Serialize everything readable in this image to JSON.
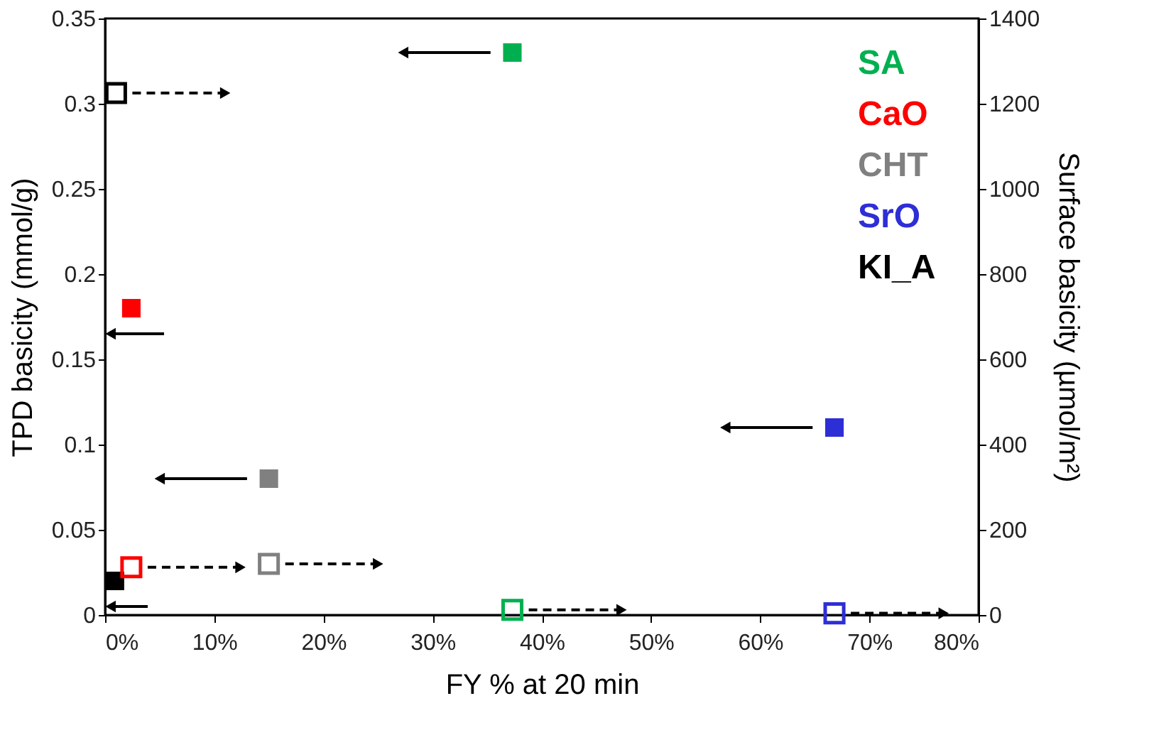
{
  "chart_data": {
    "type": "scatter",
    "xlabel": "FY % at 20 min",
    "ylabel": "TPD basicity (mmol/g)",
    "y2label": "Surface basicity (µmol/m²)",
    "xlim": [
      0,
      80
    ],
    "xticks": [
      {
        "value": 0,
        "label": "0%"
      },
      {
        "value": 10,
        "label": "10%"
      },
      {
        "value": 20,
        "label": "20%"
      },
      {
        "value": 30,
        "label": "30%"
      },
      {
        "value": 40,
        "label": "40%"
      },
      {
        "value": 50,
        "label": "50%"
      },
      {
        "value": 60,
        "label": "60%"
      },
      {
        "value": 70,
        "label": "70%"
      },
      {
        "value": 80,
        "label": "80%"
      }
    ],
    "ylim": [
      0,
      0.35
    ],
    "yticks": [
      0,
      0.05,
      0.1,
      0.15,
      0.2,
      0.25,
      0.3,
      0.35
    ],
    "y2lim": [
      0,
      1400
    ],
    "y2ticks": [
      0,
      200,
      400,
      600,
      800,
      1000,
      1200,
      1400
    ],
    "marker": "square",
    "grid": false,
    "legend": "top right",
    "series": [
      {
        "name": "SA",
        "color": "#00b050",
        "x": [
          37.3
        ],
        "values": [
          0.33
        ]
      },
      {
        "name": "CaO",
        "color": "#ff0000",
        "x": [
          2.4
        ],
        "values": [
          0.18
        ]
      },
      {
        "name": "CHT",
        "color": "#808080",
        "x": [
          15
        ],
        "values": [
          0.08
        ]
      },
      {
        "name": "SrO",
        "color": "#2e2ed6",
        "x": [
          66.8
        ],
        "values": [
          0.11
        ]
      },
      {
        "name": "KI_A",
        "color": "#000000",
        "x": [
          0.9
        ],
        "values": [
          0.02
        ]
      },
      {
        "color": "#00b050",
        "axis": "y2",
        "x": [
          37.3
        ],
        "values": [
          12
        ]
      },
      {
        "color": "#ff0000",
        "axis": "y2",
        "x": [
          2.4
        ],
        "values": [
          112
        ]
      },
      {
        "color": "#808080",
        "axis": "y2",
        "x": [
          15
        ],
        "values": [
          120
        ]
      },
      {
        "color": "#2e2ed6",
        "axis": "y2",
        "x": [
          66.8
        ],
        "values": [
          4
        ]
      },
      {
        "color": "#000000",
        "axis": "y2",
        "x": [
          1.0
        ],
        "values": [
          1225
        ]
      }
    ]
  }
}
